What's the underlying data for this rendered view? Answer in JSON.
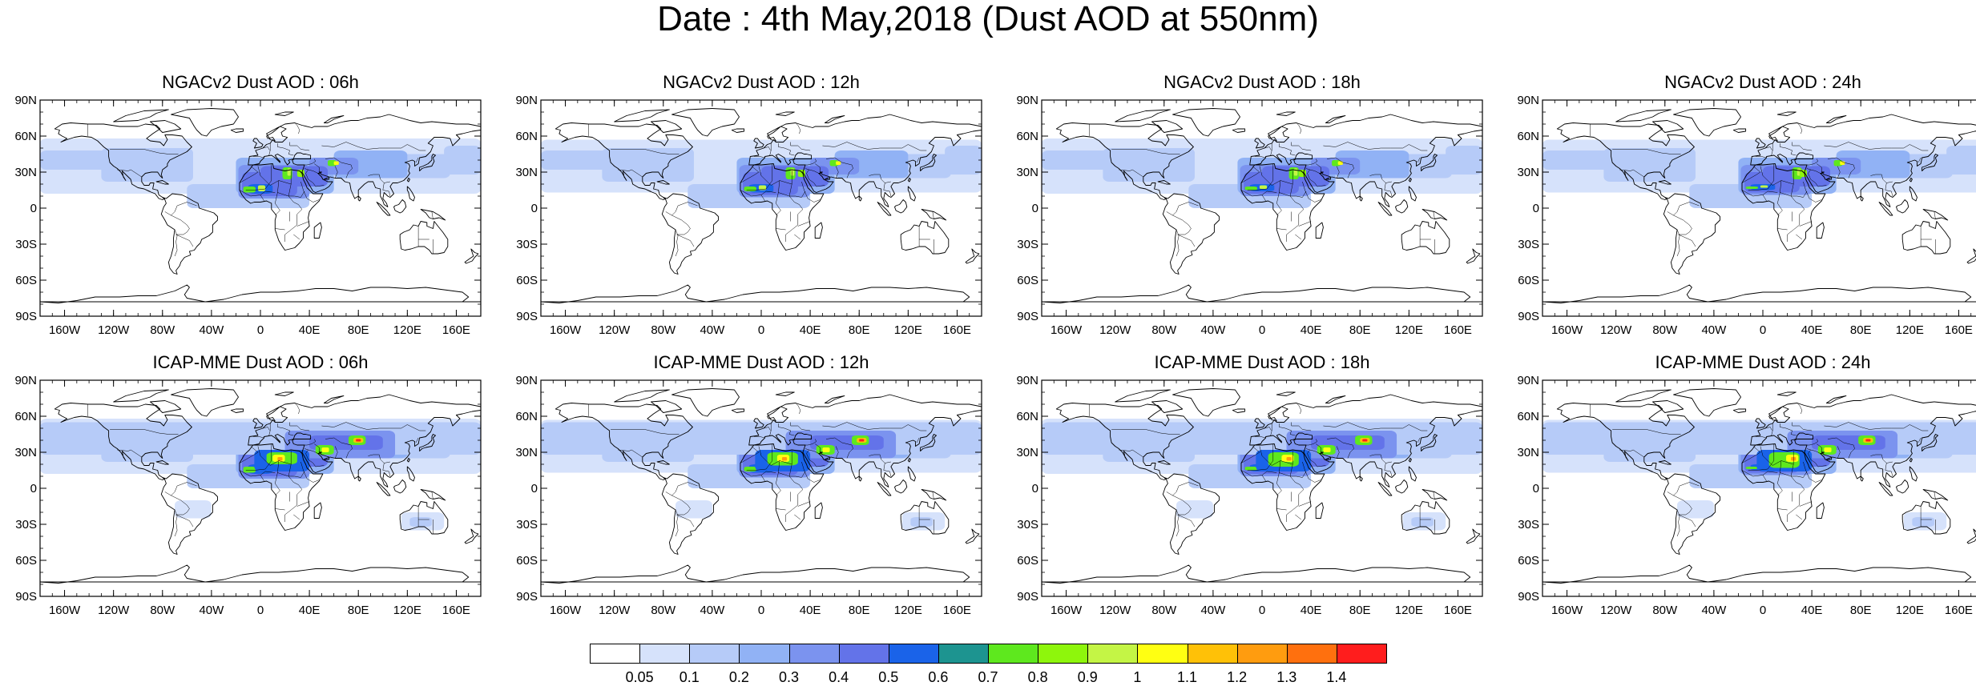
{
  "title": "Date : 4th May,2018 (Dust AOD at 550nm)",
  "panels": [
    {
      "title": "NGACv2 Dust AOD : 06h",
      "model": "NGAC",
      "shift": 0
    },
    {
      "title": "NGACv2 Dust AOD : 12h",
      "model": "NGAC",
      "shift": 1
    },
    {
      "title": "NGACv2 Dust AOD : 18h",
      "model": "NGAC",
      "shift": 2
    },
    {
      "title": "NGACv2 Dust AOD : 24h",
      "model": "NGAC",
      "shift": 3
    },
    {
      "title": "ICAP-MME Dust AOD : 06h",
      "model": "ICAP",
      "shift": 0
    },
    {
      "title": "ICAP-MME Dust AOD : 12h",
      "model": "ICAP",
      "shift": 1
    },
    {
      "title": "ICAP-MME Dust AOD : 18h",
      "model": "ICAP",
      "shift": 2
    },
    {
      "title": "ICAP-MME Dust AOD : 24h",
      "model": "ICAP",
      "shift": 3
    }
  ],
  "lat_ticks": [
    {
      "label": "90N",
      "lat": 90
    },
    {
      "label": "60N",
      "lat": 60
    },
    {
      "label": "30N",
      "lat": 30
    },
    {
      "label": "0",
      "lat": 0
    },
    {
      "label": "30S",
      "lat": -30
    },
    {
      "label": "60S",
      "lat": -60
    },
    {
      "label": "90S",
      "lat": -90
    }
  ],
  "lon_ticks": [
    {
      "label": "160W",
      "lon": -160
    },
    {
      "label": "120W",
      "lon": -120
    },
    {
      "label": "80W",
      "lon": -80
    },
    {
      "label": "40W",
      "lon": -40
    },
    {
      "label": "0",
      "lon": 0
    },
    {
      "label": "40E",
      "lon": 40
    },
    {
      "label": "80E",
      "lon": 80
    },
    {
      "label": "120E",
      "lon": 120
    },
    {
      "label": "160E",
      "lon": 160
    }
  ],
  "colorbar": {
    "colors": [
      "#ffffff",
      "#d6e2fb",
      "#b6cbf8",
      "#91b2f5",
      "#7b93ef",
      "#6373e9",
      "#1a63e9",
      "#1d9490",
      "#5ee81e",
      "#8ef60c",
      "#c4f545",
      "#ffff12",
      "#ffc107",
      "#ff9c0f",
      "#ff700e",
      "#ff1d1d"
    ],
    "labels": [
      "0.05",
      "0.1",
      "0.2",
      "0.3",
      "0.4",
      "0.5",
      "0.6",
      "0.7",
      "0.8",
      "0.9",
      "1",
      "1.1",
      "1.2",
      "1.3",
      "1.4"
    ]
  }
}
